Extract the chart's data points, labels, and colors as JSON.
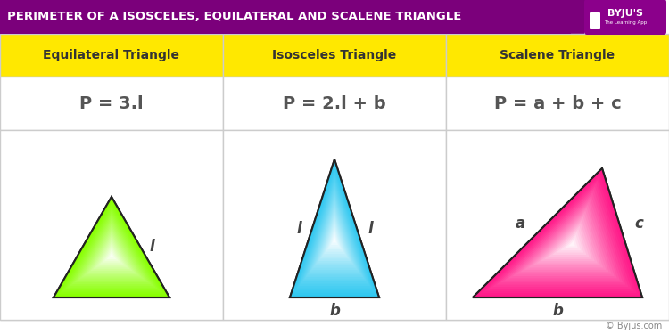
{
  "title": "PERIMETER OF A ISOSCELES, EQUILATERAL AND SCALENE TRIANGLE",
  "title_bg": "#7B007B",
  "title_color": "#FFFFFF",
  "header_bg": "#FFE800",
  "header_color": "#555555",
  "headers": [
    "Equilateral Triangle",
    "Isosceles Triangle",
    "Scalene Triangle"
  ],
  "formulas": [
    "P = 3.l",
    "P = 2.l + b",
    "P = a + b + c"
  ],
  "formula_color": "#555555",
  "border_color": "#CCCCCC",
  "byju_color": "#8B008B",
  "copyright": "© Byjus.com",
  "tri1_color": "#88FF00",
  "tri2_color": "#30C8F0",
  "tri3_color": "#FF1888",
  "label_color": "#444444"
}
